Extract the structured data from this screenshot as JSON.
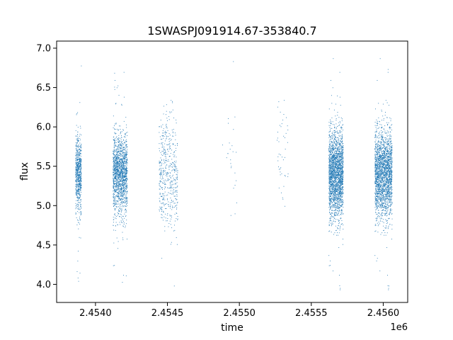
{
  "chart_data": {
    "type": "scatter",
    "title": "1SWASPJ091914.67-353840.7",
    "xlabel": "time",
    "ylabel": "flux",
    "x_offset_label": "1e6",
    "x_unit_multiplier": 1000000,
    "xlim": [
      2.45373,
      2.45617
    ],
    "ylim": [
      3.77,
      7.09
    ],
    "x_ticks": [
      2.454,
      2.4545,
      2.455,
      2.4555,
      2.456
    ],
    "x_tick_labels": [
      "2.4540",
      "2.4545",
      "2.4550",
      "2.4555",
      "2.4560"
    ],
    "y_ticks": [
      4.0,
      4.5,
      5.0,
      5.5,
      6.0,
      6.5,
      7.0
    ],
    "y_tick_labels": [
      "4.0",
      "4.5",
      "5.0",
      "5.5",
      "6.0",
      "6.5",
      "7.0"
    ],
    "grid": false,
    "legend": "none",
    "marker_color": "#1f77b4",
    "series": [
      {
        "clusters": [
          {
            "x_start": 2.45386,
            "x_end": 2.4539,
            "center": 5.4,
            "spread": 0.24,
            "count": 700
          },
          {
            "x_start": 2.45412,
            "x_end": 2.45422,
            "center": 5.4,
            "spread": 0.25,
            "count": 1600
          },
          {
            "x_start": 2.45444,
            "x_end": 2.45457,
            "center": 5.4,
            "spread": 0.36,
            "count": 500
          },
          {
            "x_start": 2.45488,
            "x_end": 2.45498,
            "center": 5.5,
            "spread": 0.35,
            "count": 25
          },
          {
            "x_start": 2.45526,
            "x_end": 2.45534,
            "center": 5.7,
            "spread": 0.4,
            "count": 45
          },
          {
            "x_start": 2.45562,
            "x_end": 2.45572,
            "center": 5.4,
            "spread": 0.28,
            "count": 2200
          },
          {
            "x_start": 2.45594,
            "x_end": 2.45606,
            "center": 5.4,
            "spread": 0.28,
            "count": 2200
          }
        ]
      }
    ]
  }
}
